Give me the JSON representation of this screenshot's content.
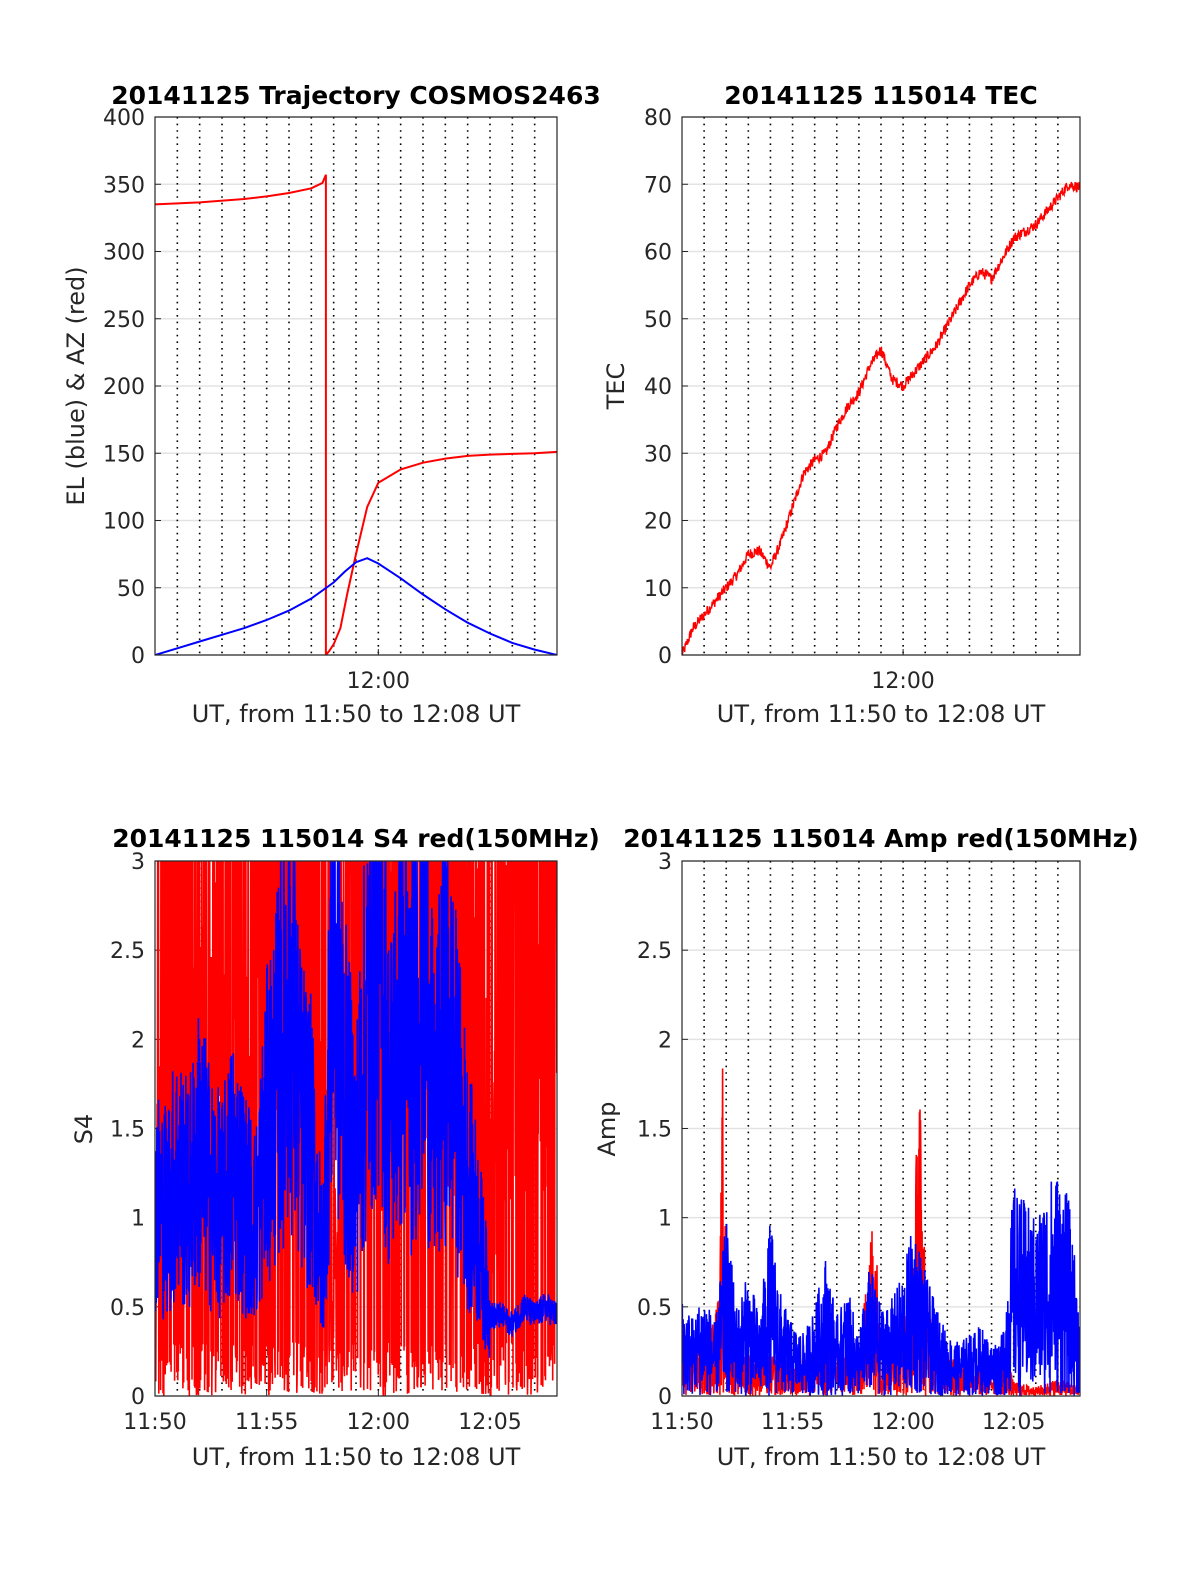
{
  "figure": {
    "background": "#ffffff"
  },
  "chart_data": [
    {
      "type": "line",
      "title": "20141125 Trajectory COSMOS2463",
      "xlabel": "UT, from 11:50 to 12:08 UT",
      "ylabel": "EL (blue) & AZ (red)",
      "xlim": [
        0,
        18
      ],
      "ylim": [
        0,
        400
      ],
      "x_unit": "minutes after 11:50 UT",
      "x_ticks": [
        {
          "value": 10,
          "label": "12:00"
        }
      ],
      "y_ticks": [
        0,
        50,
        100,
        150,
        200,
        250,
        300,
        350,
        400
      ],
      "grid": true,
      "series": [
        {
          "color": "#ff0000",
          "x": [
            0,
            2,
            4,
            5,
            6,
            7,
            7.5,
            7.65,
            7.65,
            7.8,
            8,
            8.3,
            8.6,
            9,
            9.5,
            10,
            11,
            12,
            13,
            14,
            15,
            16,
            17,
            18
          ],
          "y": [
            335,
            336.5,
            339,
            341,
            343.5,
            347,
            351,
            357,
            0,
            3,
            8,
            20,
            45,
            75,
            110,
            128,
            138,
            143,
            146,
            148,
            149,
            149.5,
            150,
            151
          ]
        },
        {
          "color": "#0000ff",
          "x": [
            0,
            1,
            2,
            3,
            4,
            5,
            6,
            7,
            8,
            8.5,
            9,
            9.5,
            10,
            11,
            12,
            13,
            14,
            15,
            16,
            17,
            18
          ],
          "y": [
            0,
            5,
            10,
            15,
            20,
            26,
            33,
            42,
            54,
            62,
            69,
            72,
            68,
            57,
            45,
            34,
            24,
            16,
            9,
            4,
            0
          ]
        }
      ]
    },
    {
      "type": "line",
      "title": "20141125 115014 TEC",
      "xlabel": "UT, from 11:50 to 12:08 UT",
      "ylabel": "TEC",
      "xlim": [
        0,
        18
      ],
      "ylim": [
        0,
        80
      ],
      "x_unit": "minutes after 11:50 UT",
      "x_ticks": [
        {
          "value": 10,
          "label": "12:00"
        }
      ],
      "y_ticks": [
        0,
        10,
        20,
        30,
        40,
        50,
        60,
        70,
        80
      ],
      "grid": true,
      "series": [
        {
          "color": "#ff0000",
          "x": [
            0,
            0.5,
            1,
            1.5,
            2,
            2.5,
            3,
            3.5,
            4,
            4.5,
            5,
            5.5,
            6,
            6.5,
            7,
            7.5,
            8,
            8.5,
            9,
            9.5,
            10,
            10.5,
            11,
            11.5,
            12,
            12.5,
            13,
            13.5,
            14,
            14.5,
            15,
            15.5,
            16,
            16.5,
            17,
            17.5,
            18
          ],
          "y": [
            0,
            4,
            6,
            8,
            10,
            12,
            15,
            15.5,
            13,
            17,
            22,
            27,
            29,
            30,
            34,
            37,
            39,
            43,
            45.5,
            41,
            40,
            42,
            44,
            46,
            49,
            52,
            55,
            57,
            56,
            59,
            62,
            63,
            64,
            66,
            68,
            70,
            69.5
          ]
        }
      ]
    },
    {
      "type": "line",
      "title": "20141125 115014 S4 red(150MHz)",
      "xlabel": "UT, from 11:50 to 12:08 UT",
      "ylabel": "S4",
      "xlim": [
        0,
        18
      ],
      "ylim": [
        0,
        3
      ],
      "x_unit": "minutes after 11:50 UT",
      "x_ticks": [
        {
          "value": 0,
          "label": "11:50"
        },
        {
          "value": 5,
          "label": "11:55"
        },
        {
          "value": 10,
          "label": "12:00"
        },
        {
          "value": 15,
          "label": "12:05"
        }
      ],
      "y_ticks": [
        "0",
        "0.5",
        "1",
        "1.5",
        "2",
        "2.5",
        "3"
      ],
      "grid": true,
      "series": [
        {
          "color": "#ff0000",
          "x": [
            0,
            1,
            2,
            3,
            4,
            5,
            6,
            7,
            8,
            9,
            10,
            11,
            12,
            13,
            14,
            15,
            16,
            17,
            18
          ],
          "y": [
            1.1,
            2.4,
            1.8,
            2.6,
            1.6,
            2.9,
            2.7,
            2.8,
            0.8,
            2.9,
            2.5,
            2.9,
            1.8,
            2.2,
            2.9,
            1.4,
            2.6,
            2.8,
            2.2
          ]
        },
        {
          "color": "#0000ff",
          "x": [
            0,
            0.5,
            1,
            1.5,
            2,
            2.5,
            3,
            3.5,
            4,
            4.5,
            5,
            5.5,
            6,
            6.5,
            7,
            7.5,
            8,
            8.5,
            9,
            9.5,
            10,
            10.5,
            11,
            11.5,
            12,
            12.5,
            13,
            13.5,
            14,
            14.5,
            15,
            15.5,
            16,
            16.5,
            17,
            17.5,
            18
          ],
          "y": [
            1.1,
            1.05,
            1.25,
            1.1,
            1.4,
            1.15,
            1.05,
            1.3,
            1.1,
            0.95,
            1.5,
            1.8,
            2.3,
            1.6,
            1.4,
            0.7,
            2.6,
            1.7,
            1.3,
            2.1,
            2.8,
            1.6,
            2.2,
            1.9,
            2.6,
            1.5,
            2.1,
            1.7,
            1.2,
            0.9,
            0.45,
            0.45,
            0.4,
            0.5,
            0.45,
            0.5,
            0.45
          ]
        }
      ]
    },
    {
      "type": "line",
      "title": "20141125 115014 Amp red(150MHz)",
      "xlabel": "UT, from 11:50 to 12:08 UT",
      "ylabel": "Amp",
      "xlim": [
        0,
        18
      ],
      "ylim": [
        0,
        3
      ],
      "x_unit": "minutes after 11:50 UT",
      "x_ticks": [
        {
          "value": 0,
          "label": "11:50"
        },
        {
          "value": 5,
          "label": "11:55"
        },
        {
          "value": 10,
          "label": "12:00"
        },
        {
          "value": 15,
          "label": "12:05"
        }
      ],
      "y_ticks": [
        "0",
        "0.5",
        "1",
        "1.5",
        "2",
        "2.5",
        "3"
      ],
      "grid": true,
      "series": [
        {
          "color": "#ff0000",
          "x": [
            0,
            1,
            1.7,
            1.85,
            2,
            2.5,
            3,
            5,
            7,
            8,
            8.7,
            9,
            9.5,
            10,
            10.5,
            10.7,
            11,
            11.5,
            12,
            13,
            14,
            14.5,
            15,
            16,
            17,
            18
          ],
          "y": [
            0.25,
            0.3,
            0.6,
            2.02,
            0.6,
            0.3,
            0.25,
            0.2,
            0.3,
            0.2,
            1.17,
            0.2,
            0.3,
            0.5,
            0.8,
            2.04,
            0.7,
            0.3,
            0.25,
            0.2,
            0.15,
            0.3,
            0.08,
            0.05,
            0.1,
            0.05
          ]
        },
        {
          "color": "#0000ff",
          "x": [
            0,
            0.5,
            1,
            1.5,
            2,
            2.5,
            3,
            3.5,
            4,
            4.5,
            5,
            5.5,
            6,
            6.5,
            7,
            7.5,
            8,
            8.5,
            9,
            9.5,
            10,
            10.5,
            11,
            11.5,
            12,
            12.5,
            13,
            13.5,
            14,
            14.5,
            15,
            15.5,
            16,
            16.5,
            17,
            17.5,
            18
          ],
          "y": [
            0.55,
            0.45,
            0.6,
            0.4,
            1.0,
            0.5,
            0.7,
            0.45,
            1.0,
            0.55,
            0.4,
            0.35,
            0.5,
            0.8,
            0.45,
            0.6,
            0.35,
            0.75,
            0.5,
            0.55,
            0.7,
            1.0,
            0.7,
            0.5,
            0.35,
            0.3,
            0.35,
            0.4,
            0.3,
            0.35,
            1.2,
            1.1,
            1.0,
            1.2,
            1.3,
            1.1,
            0.5
          ]
        }
      ]
    }
  ]
}
